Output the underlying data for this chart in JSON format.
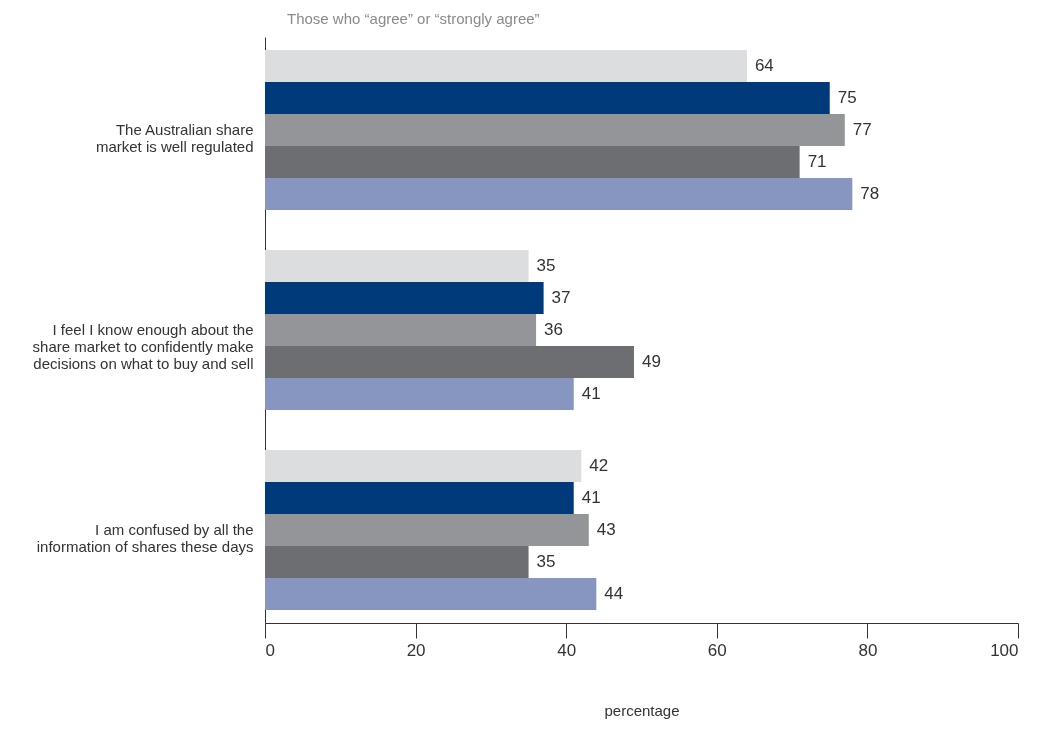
{
  "chart_data": {
    "type": "bar",
    "orientation": "horizontal",
    "title": "Those who “agree” or “strongly agree”",
    "xlabel": "percentage",
    "categories": [
      "The Australian share\nmarket is well regulated",
      "I feel I know enough about the\nshare market to confidently make\ndecisions on what to buy and sell",
      "I am confused by all the\ninformation of shares these days"
    ],
    "series": [
      {
        "color": "#dcdddf",
        "values": [
          64,
          35,
          42
        ]
      },
      {
        "color": "#003a7a",
        "values": [
          75,
          37,
          41
        ]
      },
      {
        "color": "#939598",
        "values": [
          77,
          36,
          43
        ]
      },
      {
        "color": "#6d6e71",
        "values": [
          71,
          49,
          35
        ]
      },
      {
        "color": "#8696c0",
        "values": [
          78,
          41,
          44
        ]
      }
    ],
    "xlim": [
      0,
      100
    ],
    "xticks": [
      0,
      20,
      40,
      60,
      80,
      100
    ],
    "data_labels": true
  }
}
